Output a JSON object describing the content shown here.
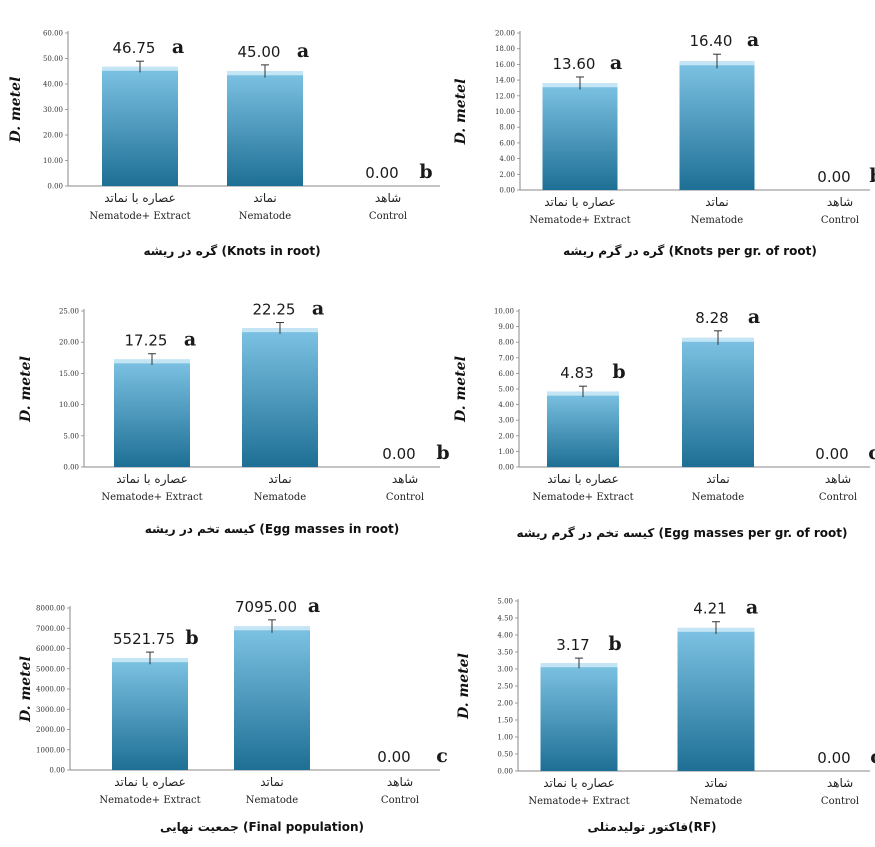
{
  "colors": {
    "bar_top": "#7ec3e4",
    "bar_bottom": "#1e6f95",
    "axis": "#8a8a8a"
  },
  "chart_data": [
    {
      "type": "bar",
      "ylabel": "D. metel",
      "ylim": [
        0,
        60
      ],
      "yticks": [
        "0.00",
        "10.00",
        "20.00",
        "30.00",
        "40.00",
        "50.00",
        "60.00"
      ],
      "categories_fa": [
        "عصاره با نماتد",
        "نماتد",
        "شاهد"
      ],
      "categories_en": [
        "Nematode+ Extract",
        "Nematode",
        "Control"
      ],
      "values": [
        46.75,
        45.0,
        0.0
      ],
      "value_labels": [
        "46.75",
        "45.00",
        "0.00"
      ],
      "letters": [
        "a",
        "a",
        "b"
      ],
      "errors": [
        2.2,
        2.5,
        0
      ],
      "caption": "گره در ریشه (Knots in root)"
    },
    {
      "type": "bar",
      "ylabel": "D. metel",
      "ylim": [
        0,
        20
      ],
      "yticks": [
        "0.00",
        "2.00",
        "4.00",
        "6.00",
        "8.00",
        "10.00",
        "12.00",
        "14.00",
        "16.00",
        "18.00",
        "20.00"
      ],
      "categories_fa": [
        "عصاره با نماتد",
        "نماتد",
        "شاهد"
      ],
      "categories_en": [
        "Nematode+ Extract",
        "Nematode",
        "Control"
      ],
      "values": [
        13.6,
        16.4,
        0.0
      ],
      "value_labels": [
        "13.60",
        "16.40",
        "0.00"
      ],
      "letters": [
        "a",
        "a",
        "b"
      ],
      "errors": [
        0.8,
        0.9,
        0
      ],
      "caption": "گره در گرم ریشه (Knots per gr. of root)"
    },
    {
      "type": "bar",
      "ylabel": "D. metel",
      "ylim": [
        0,
        25
      ],
      "yticks": [
        "0.00",
        "5.00",
        "10.00",
        "15.00",
        "20.00",
        "25.00"
      ],
      "categories_fa": [
        "عصاره با نماتد",
        "نماتد",
        "شاهد"
      ],
      "categories_en": [
        "Nematode+ Extract",
        "Nematode",
        "Control"
      ],
      "values": [
        17.25,
        22.25,
        0.0
      ],
      "value_labels": [
        "17.25",
        "22.25",
        "0.00"
      ],
      "letters": [
        "a",
        "a",
        "b"
      ],
      "errors": [
        0.9,
        0.9,
        0
      ],
      "caption": "کیسه تخم در ریشه (Egg masses in root)"
    },
    {
      "type": "bar",
      "ylabel": "D. metel",
      "ylim": [
        0,
        10
      ],
      "yticks": [
        "0.00",
        "1.00",
        "2.00",
        "3.00",
        "4.00",
        "5.00",
        "6.00",
        "7.00",
        "8.00",
        "9.00",
        "10.00"
      ],
      "categories_fa": [
        "عصاره با نماتد",
        "نماتد",
        "شاهد"
      ],
      "categories_en": [
        "Nematode+ Extract",
        "Nematode",
        "Control"
      ],
      "values": [
        4.83,
        8.28,
        0.0
      ],
      "value_labels": [
        "4.83",
        "8.28",
        "0.00"
      ],
      "letters": [
        "b",
        "a",
        "c"
      ],
      "errors": [
        0.35,
        0.45,
        0
      ],
      "caption": "کیسه تخم در گرم ریشه (Egg masses per gr. of root)"
    },
    {
      "type": "bar",
      "ylabel": "D. metel",
      "ylim": [
        0,
        8000
      ],
      "yticks": [
        "0.00",
        "1000.00",
        "2000.00",
        "3000.00",
        "4000.00",
        "5000.00",
        "6000.00",
        "7000.00",
        "8000.00"
      ],
      "categories_fa": [
        "عصاره با نماتد",
        "نماتد",
        "شاهد"
      ],
      "categories_en": [
        "Nematode+ Extract",
        "Nematode",
        "Control"
      ],
      "values": [
        5521.75,
        7095.0,
        0.0
      ],
      "value_labels": [
        "5521.75",
        "7095.00",
        "0.00"
      ],
      "letters": [
        "b",
        "a",
        "c"
      ],
      "errors": [
        300,
        320,
        0
      ],
      "caption": "جمعیت نهایی (Final population)"
    },
    {
      "type": "bar",
      "ylabel": "D. metel",
      "ylim": [
        0,
        5
      ],
      "yticks": [
        "0.00",
        "0.50",
        "1.00",
        "1.50",
        "2.00",
        "2.50",
        "3.00",
        "3.50",
        "4.00",
        "4.50",
        "5.00"
      ],
      "categories_fa": [
        "عصاره با نماتد",
        "نماتد",
        "شاهد"
      ],
      "categories_en": [
        "Nematode+ Extract",
        "Nematode",
        "Control"
      ],
      "values": [
        3.17,
        4.21,
        0.0
      ],
      "value_labels": [
        "3.17",
        "4.21",
        "0.00"
      ],
      "letters": [
        "b",
        "a",
        "c"
      ],
      "errors": [
        0.15,
        0.18,
        0
      ],
      "caption": "فاکتور تولیدمثلی(RF)"
    }
  ]
}
